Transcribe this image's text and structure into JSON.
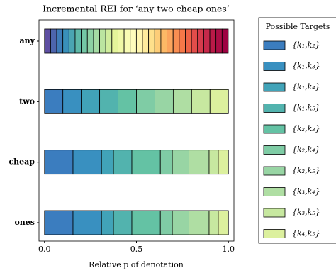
{
  "chart_data": {
    "type": "stacked_barh",
    "title": "Incremental REI for ‘any two cheap ones’",
    "xlabel": "Relative p of denotation",
    "categories": [
      "any",
      "two",
      "cheap",
      "ones"
    ],
    "xlim": [
      -0.03,
      1.03
    ],
    "xticks": [
      {
        "value": 0,
        "label": "0.0"
      },
      {
        "value": 0.5,
        "label": "0.5"
      },
      {
        "value": 1,
        "label": "1.0"
      }
    ],
    "legend_title": "Possible Targets",
    "legend": "outside right",
    "series": [
      {
        "name": "{k₁,k₂}",
        "color": "#3b7dbf",
        "values": [
          null,
          0.1,
          0.155,
          0.155
        ]
      },
      {
        "name": "{k₁,k₃}",
        "color": "#3990c0",
        "values": [
          null,
          0.1,
          0.155,
          0.155
        ]
      },
      {
        "name": "{k₁,k₄}",
        "color": "#41a3b8",
        "values": [
          null,
          0.1,
          0.065,
          0.065
        ]
      },
      {
        "name": "{k₁,k₅}",
        "color": "#52b3ae",
        "values": [
          null,
          0.1,
          0.1,
          0.1
        ]
      },
      {
        "name": "{k₂,k₃}",
        "color": "#64c2a4",
        "values": [
          null,
          0.1,
          0.155,
          0.155
        ]
      },
      {
        "name": "{k₂,k₄}",
        "color": "#7fcca5",
        "values": [
          null,
          0.1,
          0.065,
          0.065
        ]
      },
      {
        "name": "{k₂,k₅}",
        "color": "#98d5a4",
        "values": [
          null,
          0.1,
          0.09,
          0.09
        ]
      },
      {
        "name": "{k₃,k₄}",
        "color": "#afdea3",
        "values": [
          null,
          0.1,
          0.11,
          0.11
        ]
      },
      {
        "name": "{k₃,k₅}",
        "color": "#c7e8a0",
        "values": [
          null,
          0.1,
          0.05,
          0.05
        ]
      },
      {
        "name": "{k₄,k₅}",
        "color": "#dcf09e",
        "values": [
          null,
          0.1,
          0.055,
          0.055
        ]
      }
    ],
    "any_segments": {
      "values": [
        0.0333,
        0.0333,
        0.0333,
        0.0333,
        0.0333,
        0.0333,
        0.0333,
        0.0333,
        0.0333,
        0.0333,
        0.0333,
        0.0333,
        0.0333,
        0.0333,
        0.0333,
        0.0333,
        0.0333,
        0.0333,
        0.0333,
        0.0333,
        0.0333,
        0.0333,
        0.0333,
        0.0333,
        0.0333,
        0.0333,
        0.0333,
        0.0333,
        0.0333,
        0.0333
      ],
      "colors": [
        "#5e4fa2",
        "#4d65ad",
        "#3e7bb8",
        "#3990ba",
        "#4aa5b2",
        "#5eb9a8",
        "#74c7a5",
        "#8ed1a4",
        "#a5dba4",
        "#bbe4a0",
        "#d0ec9c",
        "#e4f49a",
        "#eff8a6",
        "#f8fbb4",
        "#fefcbc",
        "#fff6b0",
        "#feeb9d",
        "#fee08b",
        "#fdcd78",
        "#fdb966",
        "#fca55d",
        "#f98e52",
        "#f57748",
        "#ed6245",
        "#e24d4a",
        "#d73c4c",
        "#c7294a",
        "#b91a47",
        "#ab0d45",
        "#9e0142"
      ]
    }
  }
}
